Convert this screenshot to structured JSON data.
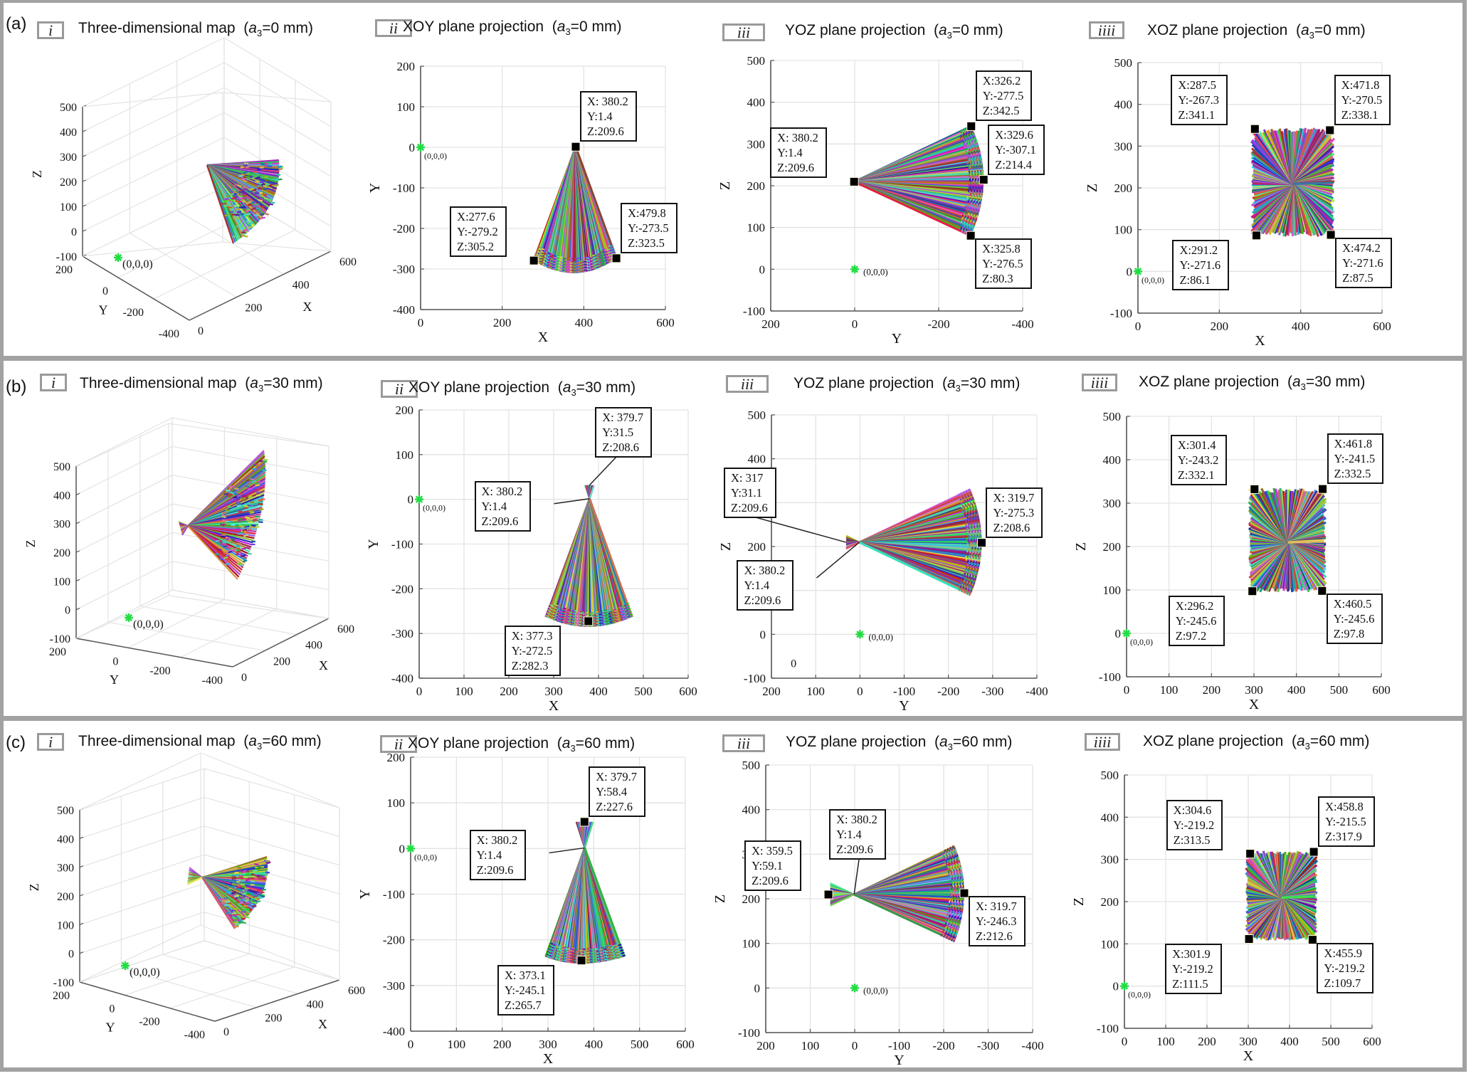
{
  "rows": [
    {
      "label": "(a)",
      "a3": "0",
      "panels": {
        "i": {
          "roman": "i",
          "title": "Three-dimensional map"
        },
        "ii": {
          "roman": "ii",
          "title": "XOY plane projection"
        },
        "iii": {
          "roman": "iii",
          "title": "YOZ plane projection"
        },
        "iiii": {
          "roman": "iiii",
          "title": "XOZ plane projection"
        }
      }
    },
    {
      "label": "(b)",
      "a3": "30",
      "panels": {
        "i": {
          "roman": "i",
          "title": "Three-dimensional map"
        },
        "ii": {
          "roman": "ii",
          "title": "XOY plane projection"
        },
        "iii": {
          "roman": "iii",
          "title": "YOZ plane projection"
        },
        "iiii": {
          "roman": "iiii",
          "title": "XOZ plane projection"
        }
      }
    },
    {
      "label": "(c)",
      "a3": "60",
      "panels": {
        "i": {
          "roman": "i",
          "title": "Three-dimensional map"
        },
        "ii": {
          "roman": "ii",
          "title": "XOY plane projection"
        },
        "iii": {
          "roman": "iii",
          "title": "YOZ plane projection"
        },
        "iiii": {
          "roman": "iiii",
          "title": "XOZ plane projection"
        }
      }
    }
  ],
  "a3_prefix": "a",
  "a3_subscript": "3",
  "a3_unit": "mm",
  "origin_label": "(0,0,0)",
  "colors": {
    "origin_marker": "#22dd44",
    "frame": "#a2a2a2",
    "grid": "#e3e3e3",
    "axis": "#555555",
    "datatip": "#000000"
  },
  "chart_data": [
    {
      "id": "a-i",
      "type": "scatter",
      "title": "Three-dimensional map (a3=0 mm)",
      "projection": "3d",
      "xlabel": "X",
      "ylabel": "Y",
      "zlabel": "Z",
      "xticks": [
        0,
        200,
        400,
        600
      ],
      "yticks": [
        200,
        0,
        -200,
        -400
      ],
      "zticks": [
        -100,
        0,
        100,
        200,
        300,
        400,
        500
      ],
      "xlim": [
        0,
        600
      ],
      "ylim": [
        -400,
        200
      ],
      "zlim": [
        -100,
        500
      ],
      "grid": true,
      "origin": [
        0,
        0,
        0
      ],
      "workspace": {
        "apex": [
          380.2,
          1.4,
          209.6
        ],
        "secondary_apex": null,
        "shape": "cone-fan"
      }
    },
    {
      "id": "a-ii",
      "type": "scatter",
      "title": "XOY plane projection (a3=0 mm)",
      "xlabel": "X",
      "ylabel": "Y",
      "xlim": [
        0,
        600
      ],
      "ylim": [
        -400,
        200
      ],
      "xticks": [
        0,
        200,
        400,
        600
      ],
      "yticks": [
        200,
        100,
        0,
        -100,
        -200,
        -300,
        -400
      ],
      "grid": true,
      "origin": [
        0,
        0
      ],
      "fan": {
        "apex": [
          380.2,
          1.4
        ],
        "far": [
          [
            277.6,
            -279.2
          ],
          [
            380,
            -310
          ],
          [
            479.8,
            -273.5
          ]
        ]
      },
      "datatips": [
        {
          "x": 380.2,
          "y": 1.4,
          "lines": [
            "X: 380.2",
            "Y:1.4",
            "Z:209.6"
          ],
          "place": "top-right"
        },
        {
          "x": 277.6,
          "y": -279.2,
          "lines": [
            "X:277.6",
            "Y:-279.2",
            "Z:305.2"
          ],
          "place": "top-left"
        },
        {
          "x": 479.8,
          "y": -273.5,
          "lines": [
            "X:479.8",
            "Y:-273.5",
            "Z:323.5"
          ],
          "place": "top-right"
        }
      ]
    },
    {
      "id": "a-iii",
      "type": "scatter",
      "title": "YOZ plane projection (a3=0 mm)",
      "xlabel": "Y",
      "ylabel": "Z",
      "xlim": [
        200,
        -400
      ],
      "ylim": [
        -100,
        500
      ],
      "xticks": [
        200,
        0,
        -200,
        -400
      ],
      "yticks": [
        500,
        400,
        300,
        200,
        100,
        0,
        -100
      ],
      "grid": true,
      "origin": [
        0,
        0
      ],
      "fan": {
        "apex": [
          1.4,
          209.6
        ],
        "far": [
          [
            -277.5,
            342.5
          ],
          [
            -307.1,
            214.4
          ],
          [
            -276.5,
            80.3
          ]
        ]
      },
      "datatips": [
        {
          "x": 1.4,
          "y": 209.6,
          "lines": [
            "X: 380.2",
            "Y:1.4",
            "Z:209.6"
          ],
          "place": "top-left"
        },
        {
          "x": -277.5,
          "y": 342.5,
          "lines": [
            "X:326.2",
            "Y:-277.5",
            "Z:342.5"
          ],
          "place": "top-right"
        },
        {
          "x": -307.1,
          "y": 214.4,
          "lines": [
            "X:329.6",
            "Y:-307.1",
            "Z:214.4"
          ],
          "place": "top-right"
        },
        {
          "x": -276.5,
          "y": 80.3,
          "lines": [
            "X:325.8",
            "Y:-276.5",
            "Z:80.3"
          ],
          "place": "bottom-right"
        }
      ]
    },
    {
      "id": "a-iiii",
      "type": "scatter",
      "title": "XOZ plane projection (a3=0 mm)",
      "xlabel": "X",
      "ylabel": "Z",
      "xlim": [
        0,
        600
      ],
      "ylim": [
        -100,
        500
      ],
      "xticks": [
        0,
        200,
        400,
        600
      ],
      "yticks": [
        500,
        400,
        300,
        200,
        100,
        0,
        -100
      ],
      "grid": true,
      "origin": [
        0,
        0
      ],
      "rect": {
        "center": [
          380.2,
          209.6
        ],
        "corners": [
          [
            287.5,
            341.1
          ],
          [
            471.8,
            338.1
          ],
          [
            291.2,
            86.1
          ],
          [
            474.2,
            87.5
          ]
        ]
      },
      "datatips": [
        {
          "x": 287.5,
          "y": 341.1,
          "lines": [
            "X:287.5",
            "Y:-267.3",
            "Z:341.1"
          ],
          "place": "top-left"
        },
        {
          "x": 471.8,
          "y": 338.1,
          "lines": [
            "X:471.8",
            "Y:-270.5",
            "Z:338.1"
          ],
          "place": "top-right"
        },
        {
          "x": 291.2,
          "y": 86.1,
          "lines": [
            "X:291.2",
            "Y:-271.6",
            "Z:86.1"
          ],
          "place": "bottom-left"
        },
        {
          "x": 474.2,
          "y": 87.5,
          "lines": [
            "X:474.2",
            "Y:-271.6",
            "Z:87.5"
          ],
          "place": "bottom-right"
        }
      ]
    },
    {
      "id": "b-i",
      "type": "scatter",
      "title": "Three-dimensional map (a3=30 mm)",
      "projection": "3d",
      "xlabel": "X",
      "ylabel": "Y",
      "zlabel": "Z",
      "xticks": [
        0,
        200,
        400,
        600
      ],
      "yticks": [
        200,
        0,
        -200,
        -400
      ],
      "zticks": [
        -100,
        0,
        100,
        200,
        300,
        400,
        500
      ],
      "xlim": [
        0,
        600
      ],
      "ylim": [
        -400,
        200
      ],
      "zlim": [
        -100,
        500
      ],
      "grid": true,
      "origin": [
        0,
        0,
        0
      ],
      "workspace": {
        "apex": [
          380.2,
          1.4,
          209.6
        ],
        "secondary_apex": [
          379.7,
          31.5,
          208.6
        ],
        "shape": "double-cone-fan"
      }
    },
    {
      "id": "b-ii",
      "type": "scatter",
      "title": "XOY plane projection (a3=30 mm)",
      "xlabel": "X",
      "ylabel": "Y",
      "xlim": [
        0,
        600
      ],
      "ylim": [
        -400,
        200
      ],
      "xticks": [
        0,
        100,
        200,
        300,
        400,
        500,
        600
      ],
      "yticks": [
        200,
        100,
        0,
        -100,
        -200,
        -300,
        -400
      ],
      "grid": true,
      "origin": [
        0,
        0
      ],
      "fan": {
        "apex": [
          380.2,
          1.4
        ],
        "far": [
          [
            283,
            -263
          ],
          [
            377.3,
            -285
          ],
          [
            475,
            -263
          ]
        ],
        "small": [
          [
            370,
            31.5
          ],
          [
            390,
            31.5
          ]
        ]
      },
      "datatips": [
        {
          "x": 379.7,
          "y": 31.5,
          "lines": [
            "X: 379.7",
            "Y:31.5",
            "Z:208.6"
          ],
          "place": "leader-top-right",
          "marker": false
        },
        {
          "x": 380.2,
          "y": 1.4,
          "lines": [
            "X: 380.2",
            "Y:1.4",
            "Z:209.6"
          ],
          "place": "leader-left",
          "marker": false
        },
        {
          "x": 377.3,
          "y": -272.5,
          "lines": [
            "X: 377.3",
            "Y:-272.5",
            "Z:282.3"
          ],
          "place": "bottom-left"
        }
      ]
    },
    {
      "id": "b-iii",
      "type": "scatter",
      "title": "YOZ plane projection (a3=30 mm)",
      "xlabel": "Y",
      "ylabel": "Z",
      "xlim": [
        200,
        -400
      ],
      "ylim": [
        -100,
        500
      ],
      "xticks": [
        200,
        100,
        0,
        -100,
        -200,
        -300,
        -400
      ],
      "yticks": [
        500,
        400,
        300,
        200,
        100,
        0,
        -100
      ],
      "grid": true,
      "origin": [
        0,
        0
      ],
      "extra_text": "0",
      "fan": {
        "apex": [
          1.4,
          209.6
        ],
        "far": [
          [
            -250,
            330
          ],
          [
            -275.3,
            208.6
          ],
          [
            -250,
            90
          ]
        ],
        "small": [
          [
            31.1,
            225
          ],
          [
            31.1,
            195
          ]
        ]
      },
      "datatips": [
        {
          "x": 31.1,
          "y": 209.6,
          "lines": [
            "X: 317",
            "Y:31.1",
            "Z:209.6"
          ],
          "place": "leader-top-left",
          "marker": false
        },
        {
          "x": 1.4,
          "y": 209.6,
          "lines": [
            "X: 380.2",
            "Y:1.4",
            "Z:209.6"
          ],
          "place": "leader-bottom-left",
          "marker": false
        },
        {
          "x": -275.3,
          "y": 208.6,
          "lines": [
            "X: 319.7",
            "Y:-275.3",
            "Z:208.6"
          ],
          "place": "top-right"
        }
      ]
    },
    {
      "id": "b-iiii",
      "type": "scatter",
      "title": "XOZ plane projection (a3=30 mm)",
      "xlabel": "X",
      "ylabel": "Z",
      "xlim": [
        0,
        600
      ],
      "ylim": [
        -100,
        500
      ],
      "xticks": [
        0,
        100,
        200,
        300,
        400,
        500,
        600
      ],
      "yticks": [
        500,
        400,
        300,
        200,
        100,
        0,
        -100
      ],
      "grid": true,
      "origin": [
        0,
        0
      ],
      "rect": {
        "center": [
          380.2,
          209.6
        ],
        "corners": [
          [
            301.4,
            332.1
          ],
          [
            461.8,
            332.5
          ],
          [
            296.2,
            97.2
          ],
          [
            460.5,
            97.8
          ]
        ]
      },
      "datatips": [
        {
          "x": 301.4,
          "y": 332.1,
          "lines": [
            "X:301.4",
            "Y:-243.2",
            "Z:332.1"
          ],
          "place": "top-left"
        },
        {
          "x": 461.8,
          "y": 332.5,
          "lines": [
            "X:461.8",
            "Y:-241.5",
            "Z:332.5"
          ],
          "place": "top-right"
        },
        {
          "x": 296.2,
          "y": 97.2,
          "lines": [
            "X:296.2",
            "Y:-245.6",
            "Z:97.2"
          ],
          "place": "bottom-left"
        },
        {
          "x": 460.5,
          "y": 97.8,
          "lines": [
            "X:460.5",
            "Y:-245.6",
            "Z:97.8"
          ],
          "place": "bottom-right"
        }
      ]
    },
    {
      "id": "c-i",
      "type": "scatter",
      "title": "Three-dimensional map (a3=60 mm)",
      "projection": "3d",
      "xlabel": "X",
      "ylabel": "Y",
      "zlabel": "Z",
      "xticks": [
        0,
        200,
        400,
        600
      ],
      "yticks": [
        200,
        0,
        -200,
        -400
      ],
      "zticks": [
        -100,
        0,
        100,
        200,
        300,
        400,
        500
      ],
      "xlim": [
        0,
        600
      ],
      "ylim": [
        -400,
        200
      ],
      "zlim": [
        -100,
        500
      ],
      "grid": true,
      "origin": [
        0,
        0,
        0
      ],
      "workspace": {
        "apex": [
          380.2,
          1.4,
          209.6
        ],
        "secondary_apex": [
          379.7,
          58.4,
          227.6
        ],
        "shape": "double-cone-fan"
      }
    },
    {
      "id": "c-ii",
      "type": "scatter",
      "title": "XOY plane projection (a3=60 mm)",
      "xlabel": "X",
      "ylabel": "Y",
      "xlim": [
        0,
        600
      ],
      "ylim": [
        -400,
        200
      ],
      "xticks": [
        0,
        100,
        200,
        300,
        400,
        500,
        600
      ],
      "yticks": [
        200,
        100,
        0,
        -100,
        -200,
        -300,
        -400
      ],
      "grid": true,
      "origin": [
        0,
        0
      ],
      "fan": {
        "apex": [
          380.2,
          1.4
        ],
        "far": [
          [
            295,
            -237
          ],
          [
            373.1,
            -252
          ],
          [
            467,
            -237
          ]
        ],
        "small": [
          [
            362,
            58.4
          ],
          [
            398,
            58.4
          ]
        ]
      },
      "datatips": [
        {
          "x": 379.7,
          "y": 58.4,
          "lines": [
            "X: 379.7",
            "Y:58.4",
            "Z:227.6"
          ],
          "place": "top-right"
        },
        {
          "x": 380.2,
          "y": 1.4,
          "lines": [
            "X: 380.2",
            "Y:1.4",
            "Z:209.6"
          ],
          "place": "leader-left",
          "marker": false
        },
        {
          "x": 373.1,
          "y": -245.1,
          "lines": [
            "X: 373.1",
            "Y:-245.1",
            "Z:265.7"
          ],
          "place": "bottom-left"
        }
      ]
    },
    {
      "id": "c-iii",
      "type": "scatter",
      "title": "YOZ plane projection (a3=60 mm)",
      "xlabel": "Y",
      "ylabel": "Z",
      "xlim": [
        200,
        -400
      ],
      "ylim": [
        -100,
        500
      ],
      "xticks": [
        200,
        100,
        0,
        -100,
        -200,
        -300,
        -400
      ],
      "yticks": [
        500,
        400,
        300,
        200,
        100,
        0,
        -100
      ],
      "grid": true,
      "origin": [
        0,
        0
      ],
      "fan": {
        "apex": [
          1.4,
          209.6
        ],
        "far": [
          [
            -225,
            318
          ],
          [
            -246.3,
            212.6
          ],
          [
            -225,
            105
          ]
        ],
        "small": [
          [
            55,
            235
          ],
          [
            55,
            185
          ]
        ]
      },
      "datatips": [
        {
          "x": 59.1,
          "y": 209.6,
          "lines": [
            "X: 359.5",
            "Y:59.1",
            "Z:209.6"
          ],
          "place": "top-left"
        },
        {
          "x": 1.4,
          "y": 209.6,
          "lines": [
            "X: 380.2",
            "Y:1.4",
            "Z:209.6"
          ],
          "place": "leader-top",
          "marker": false
        },
        {
          "x": -246.3,
          "y": 212.6,
          "lines": [
            "X: 319.7",
            "Y:-246.3",
            "Z:212.6"
          ],
          "place": "bottom-right"
        }
      ]
    },
    {
      "id": "c-iiii",
      "type": "scatter",
      "title": "XOZ plane projection (a3=60 mm)",
      "xlabel": "X",
      "ylabel": "Z",
      "xlim": [
        0,
        600
      ],
      "ylim": [
        -100,
        500
      ],
      "xticks": [
        0,
        100,
        200,
        300,
        400,
        500,
        600
      ],
      "yticks": [
        500,
        400,
        300,
        200,
        100,
        0,
        -100
      ],
      "grid": true,
      "origin": [
        0,
        0
      ],
      "rect": {
        "center": [
          380.2,
          209.6
        ],
        "corners": [
          [
            304.6,
            313.5
          ],
          [
            458.8,
            317.9
          ],
          [
            301.9,
            111.5
          ],
          [
            455.9,
            109.7
          ]
        ]
      },
      "datatips": [
        {
          "x": 304.6,
          "y": 313.5,
          "lines": [
            "X:304.6",
            "Y:-219.2",
            "Z:313.5"
          ],
          "place": "top-left"
        },
        {
          "x": 458.8,
          "y": 317.9,
          "lines": [
            "X:458.8",
            "Y:-215.5",
            "Z:317.9"
          ],
          "place": "top-right"
        },
        {
          "x": 301.9,
          "y": 111.5,
          "lines": [
            "X:301.9",
            "Y:-219.2",
            "Z:111.5"
          ],
          "place": "bottom-left"
        },
        {
          "x": 455.9,
          "y": 109.7,
          "lines": [
            "X:455.9",
            "Y:-219.2",
            "Z:109.7"
          ],
          "place": "bottom-right"
        }
      ]
    }
  ]
}
